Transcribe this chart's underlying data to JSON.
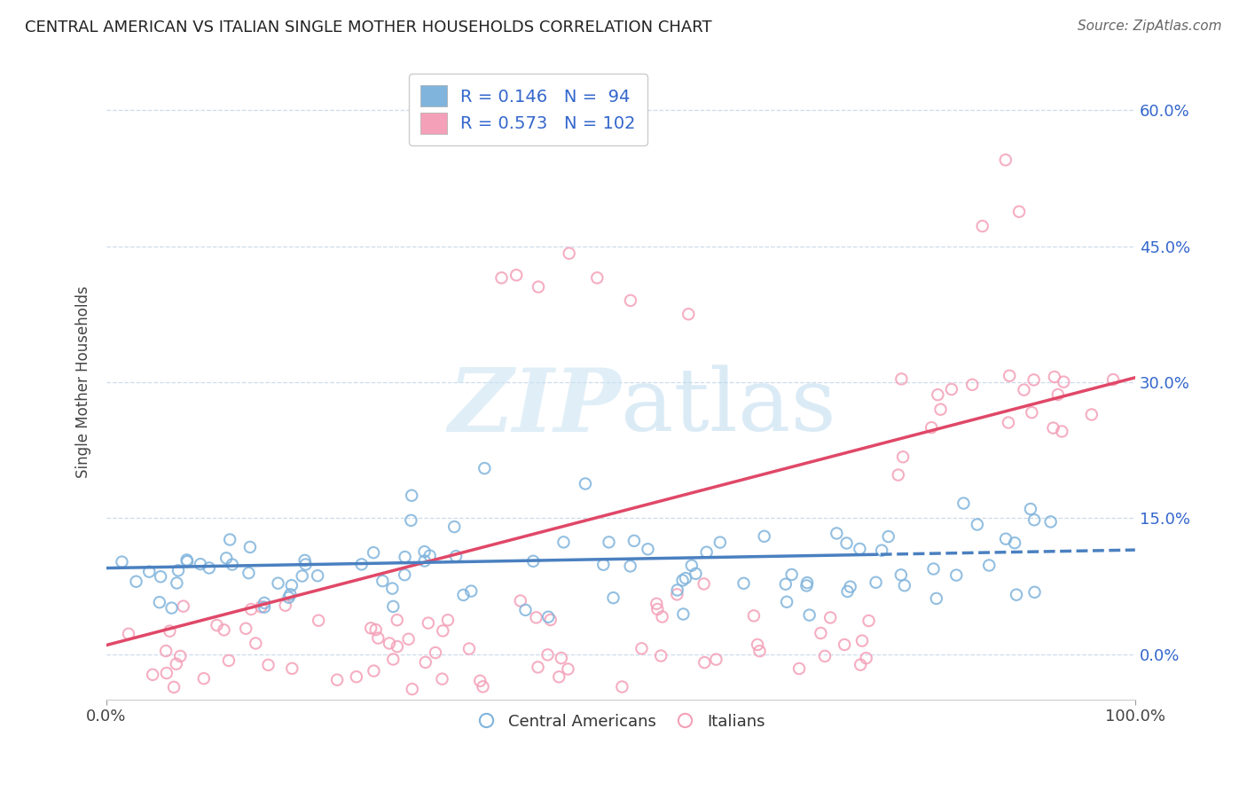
{
  "title": "CENTRAL AMERICAN VS ITALIAN SINGLE MOTHER HOUSEHOLDS CORRELATION CHART",
  "source": "Source: ZipAtlas.com",
  "ylabel": "Single Mother Households",
  "xlim": [
    0.0,
    1.0
  ],
  "ylim": [
    -0.05,
    0.65
  ],
  "blue_R": 0.146,
  "blue_N": 94,
  "pink_R": 0.573,
  "pink_N": 102,
  "blue_scatter_color": "#80b4dc",
  "pink_scatter_color": "#f4a0b8",
  "trend_blue_color": "#4a80c0",
  "trend_pink_color": "#e04868",
  "yticks": [
    0.0,
    0.15,
    0.3,
    0.45,
    0.6
  ],
  "ytick_labels": [
    "0.0%",
    "15.0%",
    "30.0%",
    "45.0%",
    "60.0%"
  ],
  "xtick_labels": [
    "0.0%",
    "100.0%"
  ],
  "legend_label_blue": "Central Americans",
  "legend_label_pink": "Italians",
  "blue_intercept": 0.095,
  "blue_slope": 0.02,
  "pink_intercept": 0.01,
  "pink_slope": 0.295,
  "blue_trend_solid_end": 0.75,
  "legend_text_color": "#3366cc",
  "axis_label_color": "#3366cc",
  "grid_color": "#c8d8e8",
  "title_color": "#222222",
  "source_color": "#666666"
}
